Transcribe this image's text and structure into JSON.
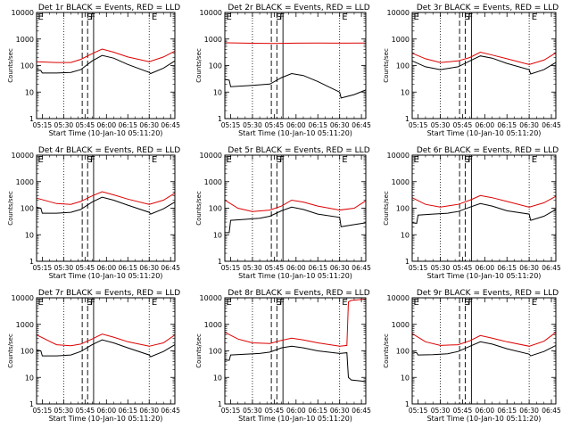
{
  "colors": {
    "events": "#000000",
    "lld": "#dd0000",
    "axes": "#000000",
    "background": "#ffffff"
  },
  "common": {
    "xlabel": "Start Time (10-Jan-10 05:11:20)",
    "ylabel": "Counts/sec",
    "x_tick_labels": [
      "05:15",
      "05:30",
      "05:45",
      "06:00",
      "06:15",
      "06:30",
      "06:45"
    ],
    "y_tick_labels": [
      "1",
      "10",
      "100",
      "1000",
      "10000"
    ],
    "marker_labels": [
      "E",
      "S",
      "F",
      "E"
    ]
  },
  "chart_data": [
    {
      "type": "line",
      "title": "Det 1r BLACK = Events, RED = LLD",
      "yscale": "log",
      "ylim": [
        1,
        10000
      ],
      "series": [
        {
          "color": "#dd0000",
          "x": [
            "05:11",
            "05:25",
            "05:35",
            "05:42",
            "05:50",
            "05:57",
            "06:05",
            "06:15",
            "06:30",
            "06:40",
            "06:48"
          ],
          "y": [
            140,
            130,
            130,
            170,
            280,
            420,
            320,
            210,
            140,
            210,
            350
          ]
        },
        {
          "color": "#000000",
          "x": [
            "05:11",
            "05:14",
            "05:15",
            "05:25",
            "05:35",
            "05:42",
            "05:50",
            "05:57",
            "06:05",
            "06:15",
            "06:30",
            "06:31",
            "06:40",
            "06:48"
          ],
          "y": [
            70,
            65,
            52,
            52,
            55,
            70,
            150,
            240,
            190,
            110,
            55,
            50,
            80,
            150
          ]
        }
      ]
    },
    {
      "type": "line",
      "title": "Det 2r BLACK = Events, RED = LLD",
      "yscale": "log",
      "ylim": [
        1,
        10000
      ],
      "series": [
        {
          "color": "#dd0000",
          "x": [
            "05:11",
            "05:30",
            "05:45",
            "06:00",
            "06:15",
            "06:30",
            "06:48"
          ],
          "y": [
            720,
            690,
            680,
            700,
            710,
            700,
            710
          ]
        },
        {
          "color": "#000000",
          "x": [
            "05:11",
            "05:14",
            "05:15",
            "05:30",
            "05:42",
            "05:50",
            "05:57",
            "06:05",
            "06:15",
            "06:30",
            "06:31",
            "06:40",
            "06:48"
          ],
          "y": [
            30,
            28,
            16,
            18,
            20,
            35,
            50,
            42,
            25,
            10,
            6,
            8,
            12
          ]
        }
      ]
    },
    {
      "type": "line",
      "title": "Det 3r BLACK = Events, RED = LLD",
      "yscale": "log",
      "ylim": [
        1,
        10000
      ],
      "series": [
        {
          "color": "#dd0000",
          "x": [
            "05:11",
            "05:20",
            "05:30",
            "05:42",
            "05:50",
            "05:57",
            "06:05",
            "06:15",
            "06:30",
            "06:40",
            "06:48"
          ],
          "y": [
            290,
            180,
            130,
            150,
            200,
            320,
            250,
            180,
            110,
            160,
            300
          ]
        },
        {
          "color": "#000000",
          "x": [
            "05:11",
            "05:20",
            "05:30",
            "05:42",
            "05:50",
            "05:57",
            "06:05",
            "06:15",
            "06:30",
            "06:31",
            "06:40",
            "06:48"
          ],
          "y": [
            150,
            90,
            70,
            90,
            150,
            230,
            190,
            120,
            70,
            48,
            70,
            130
          ]
        }
      ]
    },
    {
      "type": "line",
      "title": "Det 4r BLACK = Events, RED = LLD",
      "yscale": "log",
      "ylim": [
        1,
        10000
      ],
      "series": [
        {
          "color": "#dd0000",
          "x": [
            "05:11",
            "05:25",
            "05:35",
            "05:42",
            "05:50",
            "05:57",
            "06:05",
            "06:15",
            "06:30",
            "06:40",
            "06:48"
          ],
          "y": [
            240,
            150,
            140,
            180,
            290,
            420,
            320,
            220,
            140,
            200,
            370
          ]
        },
        {
          "color": "#000000",
          "x": [
            "05:11",
            "05:14",
            "05:15",
            "05:25",
            "05:35",
            "05:42",
            "05:50",
            "05:57",
            "06:05",
            "06:15",
            "06:30",
            "06:31",
            "06:40",
            "06:48"
          ],
          "y": [
            110,
            100,
            65,
            65,
            70,
            90,
            170,
            260,
            200,
            130,
            70,
            60,
            95,
            170
          ]
        }
      ]
    },
    {
      "type": "line",
      "title": "Det 5r BLACK = Events, RED = LLD",
      "yscale": "log",
      "ylim": [
        1,
        10000
      ],
      "series": [
        {
          "color": "#dd0000",
          "x": [
            "05:11",
            "05:20",
            "05:30",
            "05:42",
            "05:50",
            "05:57",
            "06:05",
            "06:15",
            "06:30",
            "06:40",
            "06:48"
          ],
          "y": [
            200,
            100,
            75,
            85,
            120,
            200,
            170,
            120,
            85,
            100,
            190
          ]
        },
        {
          "color": "#000000",
          "x": [
            "05:11",
            "05:14",
            "05:15",
            "05:25",
            "05:35",
            "05:42",
            "05:50",
            "05:57",
            "06:05",
            "06:15",
            "06:30",
            "06:31",
            "06:40",
            "06:48"
          ],
          "y": [
            12,
            12,
            35,
            38,
            42,
            50,
            80,
            110,
            90,
            60,
            45,
            20,
            24,
            28
          ]
        }
      ]
    },
    {
      "type": "line",
      "title": "Det 6r BLACK = Events, RED = LLD",
      "yscale": "log",
      "ylim": [
        1,
        10000
      ],
      "series": [
        {
          "color": "#dd0000",
          "x": [
            "05:11",
            "05:20",
            "05:30",
            "05:42",
            "05:50",
            "05:57",
            "06:05",
            "06:15",
            "06:30",
            "06:40",
            "06:48"
          ],
          "y": [
            250,
            140,
            110,
            140,
            200,
            300,
            250,
            180,
            110,
            160,
            280
          ]
        },
        {
          "color": "#000000",
          "x": [
            "05:11",
            "05:14",
            "05:15",
            "05:25",
            "05:35",
            "05:42",
            "05:50",
            "05:57",
            "06:05",
            "06:15",
            "06:30",
            "06:31",
            "06:40",
            "06:48"
          ],
          "y": [
            28,
            27,
            55,
            60,
            65,
            75,
            110,
            150,
            120,
            80,
            60,
            35,
            50,
            90
          ]
        }
      ]
    },
    {
      "type": "line",
      "title": "Det 7r BLACK = Events, RED = LLD",
      "yscale": "log",
      "ylim": [
        1,
        10000
      ],
      "series": [
        {
          "color": "#dd0000",
          "x": [
            "05:11",
            "05:25",
            "05:35",
            "05:42",
            "05:50",
            "05:57",
            "06:05",
            "06:15",
            "06:30",
            "06:40",
            "06:48"
          ],
          "y": [
            400,
            170,
            155,
            180,
            280,
            430,
            330,
            220,
            150,
            200,
            400
          ]
        },
        {
          "color": "#000000",
          "x": [
            "05:11",
            "05:14",
            "05:15",
            "05:25",
            "05:35",
            "05:42",
            "05:50",
            "05:57",
            "06:05",
            "06:15",
            "06:30",
            "06:31",
            "06:40",
            "06:48"
          ],
          "y": [
            110,
            100,
            65,
            65,
            70,
            95,
            170,
            260,
            200,
            130,
            70,
            60,
            95,
            170
          ]
        }
      ]
    },
    {
      "type": "line",
      "title": "Det 8r BLACK = Events, RED = LLD",
      "yscale": "log",
      "ylim": [
        1,
        10000
      ],
      "series": [
        {
          "color": "#dd0000",
          "x": [
            "05:11",
            "05:20",
            "05:30",
            "05:42",
            "05:50",
            "05:57",
            "06:05",
            "06:15",
            "06:30",
            "06:35",
            "06:36",
            "06:38",
            "06:48"
          ],
          "y": [
            500,
            280,
            200,
            190,
            250,
            300,
            260,
            200,
            150,
            160,
            7000,
            8000,
            9000
          ]
        },
        {
          "color": "#000000",
          "x": [
            "05:11",
            "05:14",
            "05:15",
            "05:25",
            "05:35",
            "05:42",
            "05:50",
            "05:57",
            "06:05",
            "06:15",
            "06:30",
            "06:35",
            "06:36",
            "06:38",
            "06:48"
          ],
          "y": [
            45,
            44,
            70,
            75,
            80,
            90,
            130,
            150,
            130,
            100,
            80,
            85,
            10,
            8,
            7
          ]
        }
      ]
    },
    {
      "type": "line",
      "title": "Det 9r BLACK = Events, RED = LLD",
      "yscale": "log",
      "ylim": [
        1,
        10000
      ],
      "series": [
        {
          "color": "#dd0000",
          "x": [
            "05:11",
            "05:20",
            "05:30",
            "05:42",
            "05:50",
            "05:57",
            "06:05",
            "06:15",
            "06:30",
            "06:40",
            "06:48"
          ],
          "y": [
            450,
            220,
            160,
            170,
            240,
            380,
            300,
            220,
            150,
            230,
            500
          ]
        },
        {
          "color": "#000000",
          "x": [
            "05:11",
            "05:14",
            "05:15",
            "05:25",
            "05:35",
            "05:42",
            "05:50",
            "05:57",
            "06:05",
            "06:15",
            "06:30",
            "06:31",
            "06:40",
            "06:48"
          ],
          "y": [
            90,
            85,
            70,
            72,
            78,
            95,
            150,
            220,
            180,
            120,
            75,
            65,
            95,
            160
          ]
        }
      ]
    }
  ]
}
